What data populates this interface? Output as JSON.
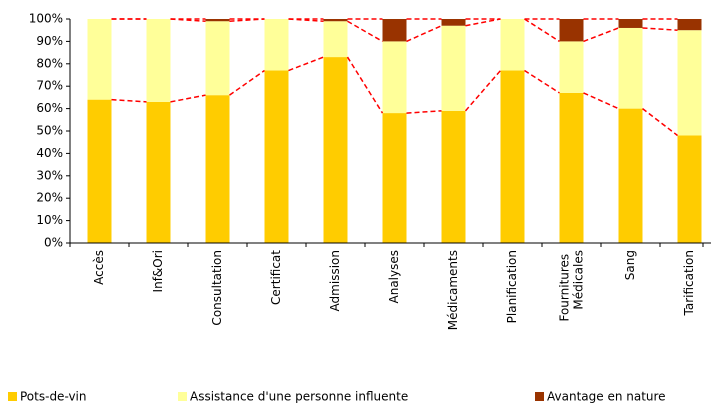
{
  "chart_data": {
    "type": "stacked_bar",
    "categories": [
      "Accès",
      "Inf&Ori",
      "Consultation",
      "Certificat",
      "Admission",
      "Analyses",
      "Médicaments",
      "Planification",
      "Fournitures Médicales",
      "Sang",
      "Tarification"
    ],
    "series": [
      {
        "name": "Pots-de-vin",
        "color": "#ffcc00",
        "values": [
          64,
          63,
          66,
          77,
          83,
          58,
          59,
          77,
          67,
          60,
          48
        ]
      },
      {
        "name": "Assistance d'une personne influente",
        "color": "#ffff99",
        "values": [
          36,
          37,
          33,
          23,
          16,
          32,
          38,
          23,
          23,
          36,
          47
        ]
      },
      {
        "name": "Avantage en nature",
        "color": "#993300",
        "values": [
          0,
          0,
          1,
          0,
          1,
          10,
          3,
          0,
          10,
          4,
          5
        ]
      }
    ],
    "ylim": [
      0,
      100
    ],
    "yticks": [
      {
        "value": 0,
        "label": "0%"
      },
      {
        "value": 10,
        "label": "10%"
      },
      {
        "value": 20,
        "label": "20%"
      },
      {
        "value": 30,
        "label": "30%"
      },
      {
        "value": 40,
        "label": "40%"
      },
      {
        "value": 50,
        "label": "50%"
      },
      {
        "value": 60,
        "label": "60%"
      },
      {
        "value": 70,
        "label": "70%"
      },
      {
        "value": 80,
        "label": "80%"
      },
      {
        "value": 90,
        "label": "90%"
      },
      {
        "value": 100,
        "label": "100%"
      }
    ],
    "series_lines_color": "#ff0000",
    "legend": "bottom"
  }
}
